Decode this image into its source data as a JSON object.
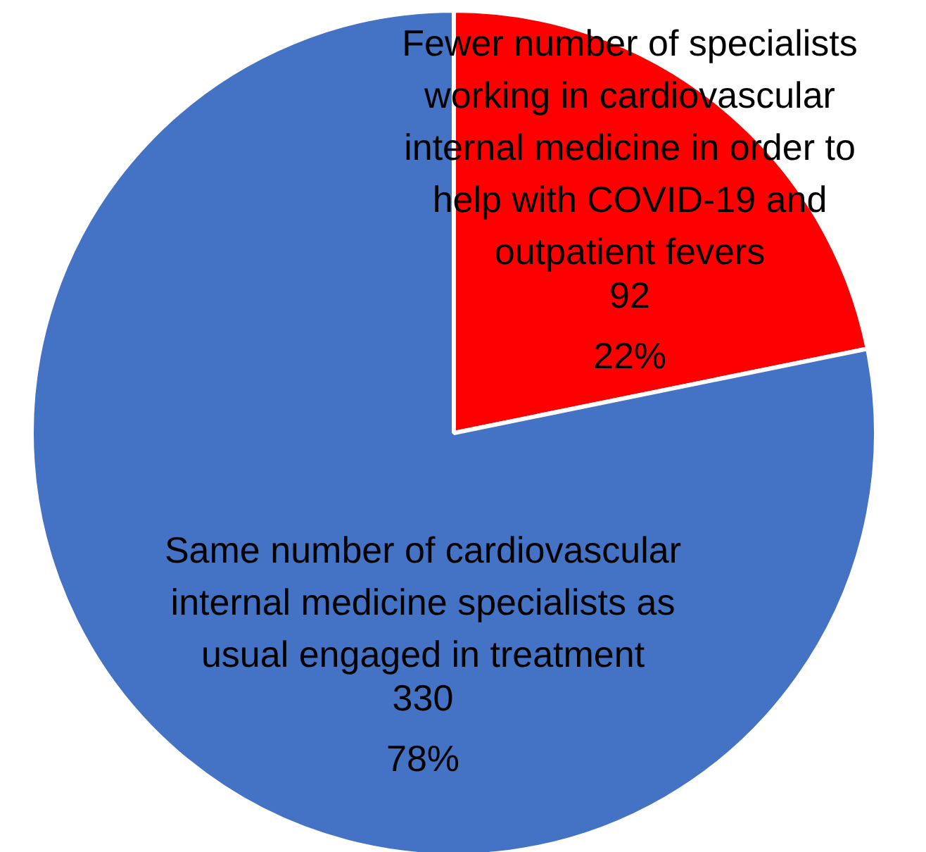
{
  "chart_data": {
    "type": "pie",
    "categories": [
      "Fewer number of specialists working in cardiovascular internal medicine in order to help with COVID-19 and outpatient fevers",
      "Same number of cardiovascular internal medicine specialists as usual engaged in treatment"
    ],
    "values": [
      92,
      330
    ],
    "value_labels": [
      "92\n22%",
      "330\n78%"
    ],
    "colors": [
      "#ff0000",
      "#4472c4"
    ]
  }
}
